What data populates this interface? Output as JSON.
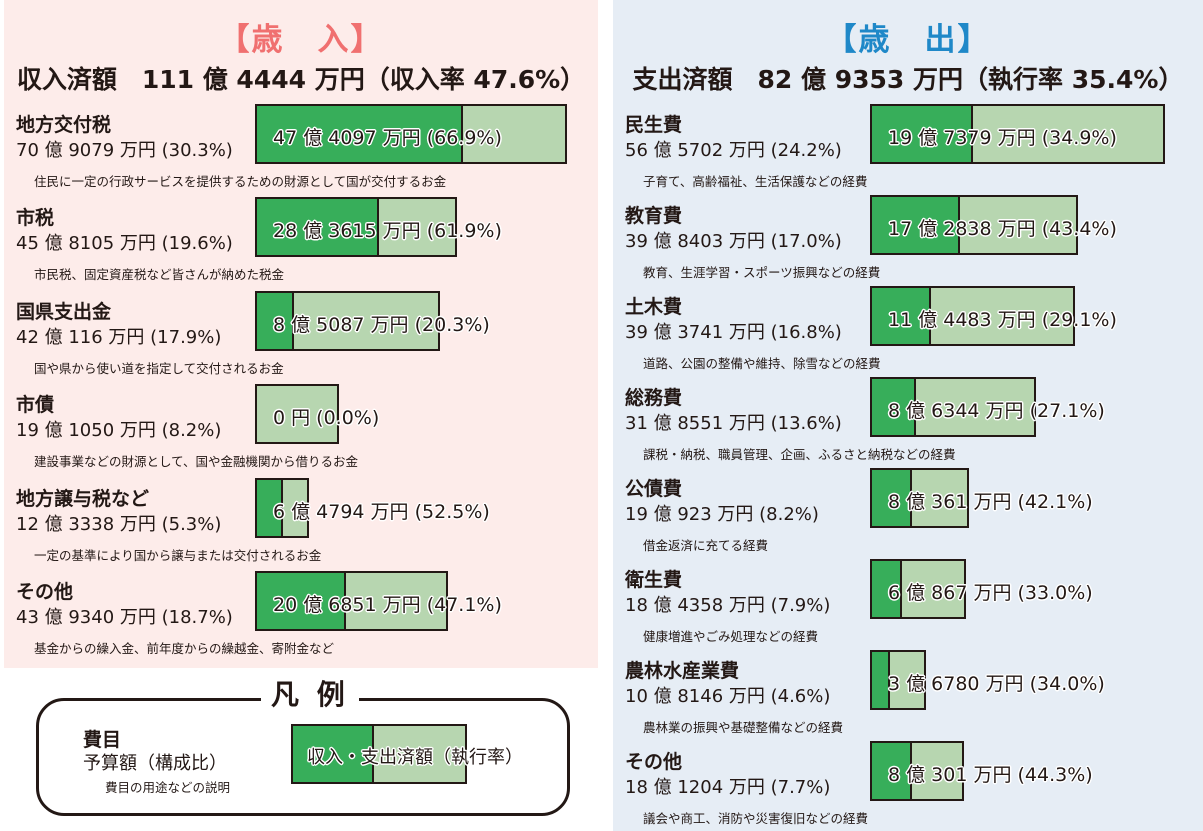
{
  "colors": {
    "executed": "#37ae5a",
    "budget": "#b7d6b0",
    "revenue_title": "#f07070",
    "expenditure_title": "#1f88c8",
    "revenue_bg": "#fdecea",
    "expenditure_bg": "#e6edf5"
  },
  "chart_data": [
    {
      "type": "bar",
      "title": "【歳　入】",
      "summary": "収入済額　111 億 4444 万円（収入率 47.6%）",
      "unit_of_values": "億円",
      "items": [
        {
          "name": "地方交付税",
          "budget_text": "70 億 9079 万円 (30.3%)",
          "budget": 70.9079,
          "executed_text": "47 億 4097 万円 (66.9%)",
          "rate": 66.9,
          "desc": "住民に一定の行政サービスを提供するための財源として国が交付するお金"
        },
        {
          "name": "市税",
          "budget_text": "45 億 8105 万円 (19.6%)",
          "budget": 45.8105,
          "executed_text": "28 億 3615 万円 (61.9%)",
          "rate": 61.9,
          "desc": "市民税、固定資産税など皆さんが納めた税金"
        },
        {
          "name": "国県支出金",
          "budget_text": "42 億 116 万円 (17.9%)",
          "budget": 42.0116,
          "executed_text": "8 億 5087 万円 (20.3%)",
          "rate": 20.3,
          "desc": "国や県から使い道を指定して交付されるお金"
        },
        {
          "name": "市債",
          "budget_text": "19 億 1050 万円 (8.2%)",
          "budget": 19.105,
          "executed_text": "0 円 (0.0%)",
          "rate": 0.0,
          "desc": "建設事業などの財源として、国や金融機関から借りるお金"
        },
        {
          "name": "地方譲与税など",
          "budget_text": "12 億 3338 万円 (5.3%)",
          "budget": 12.3338,
          "executed_text": "6 億 4794 万円 (52.5%)",
          "rate": 52.5,
          "desc": "一定の基準により国から譲与または交付されるお金"
        },
        {
          "name": "その他",
          "budget_text": "43 億 9340 万円 (18.7%)",
          "budget": 43.934,
          "executed_text": "20 億 6851 万円 (47.1%)",
          "rate": 47.1,
          "desc": "基金からの繰入金、前年度からの繰越金、寄附金など"
        }
      ]
    },
    {
      "type": "bar",
      "title": "【歳　出】",
      "summary": "支出済額　82 億 9353 万円（執行率 35.4%）",
      "unit_of_values": "億円",
      "items": [
        {
          "name": "民生費",
          "budget_text": "56 億 5702 万円 (24.2%)",
          "budget": 56.5702,
          "executed_text": "19 億 7379 万円 (34.9%)",
          "rate": 34.9,
          "desc": "子育て、高齢福祉、生活保護などの経費"
        },
        {
          "name": "教育費",
          "budget_text": "39 億 8403 万円 (17.0%)",
          "budget": 39.8403,
          "executed_text": "17 億 2838 万円 (43.4%)",
          "rate": 43.4,
          "desc": "教育、生涯学習・スポーツ振興などの経費"
        },
        {
          "name": "土木費",
          "budget_text": "39 億 3741 万円 (16.8%)",
          "budget": 39.3741,
          "executed_text": "11 億 4483 万円 (29.1%)",
          "rate": 29.1,
          "desc": "道路、公園の整備や維持、除雪などの経費"
        },
        {
          "name": "総務費",
          "budget_text": "31 億 8551 万円 (13.6%)",
          "budget": 31.8551,
          "executed_text": "8 億 6344 万円 (27.1%)",
          "rate": 27.1,
          "desc": "課税・納税、職員管理、企画、ふるさと納税などの経費"
        },
        {
          "name": "公債費",
          "budget_text": "19 億 923 万円 (8.2%)",
          "budget": 19.0923,
          "executed_text": "8 億 361 万円 (42.1%)",
          "rate": 42.1,
          "desc": "借金返済に充てる経費"
        },
        {
          "name": "衛生費",
          "budget_text": "18 億 4358 万円 (7.9%)",
          "budget": 18.4358,
          "executed_text": "6 億 867 万円 (33.0%)",
          "rate": 33.0,
          "desc": "健康増進やごみ処理などの経費"
        },
        {
          "name": "農林水産業費",
          "budget_text": "10 億 8146 万円 (4.6%)",
          "budget": 10.8146,
          "executed_text": "3 億 6780 万円 (34.0%)",
          "rate": 34.0,
          "desc": "農林業の振興や基礎整備などの経費"
        },
        {
          "name": "その他",
          "budget_text": "18 億 1204 万円 (7.7%)",
          "budget": 18.1204,
          "executed_text": "8 億 301 万円 (44.3%)",
          "rate": 44.3,
          "desc": "議会や商工、消防や災害復旧などの経費"
        }
      ]
    }
  ],
  "legend": {
    "title": "凡 例",
    "name": "費目",
    "budget": "予算額（構成比）",
    "desc": "費目の用途などの説明",
    "bar_label": "収入・支出済額（執行率）",
    "rate": 47
  }
}
